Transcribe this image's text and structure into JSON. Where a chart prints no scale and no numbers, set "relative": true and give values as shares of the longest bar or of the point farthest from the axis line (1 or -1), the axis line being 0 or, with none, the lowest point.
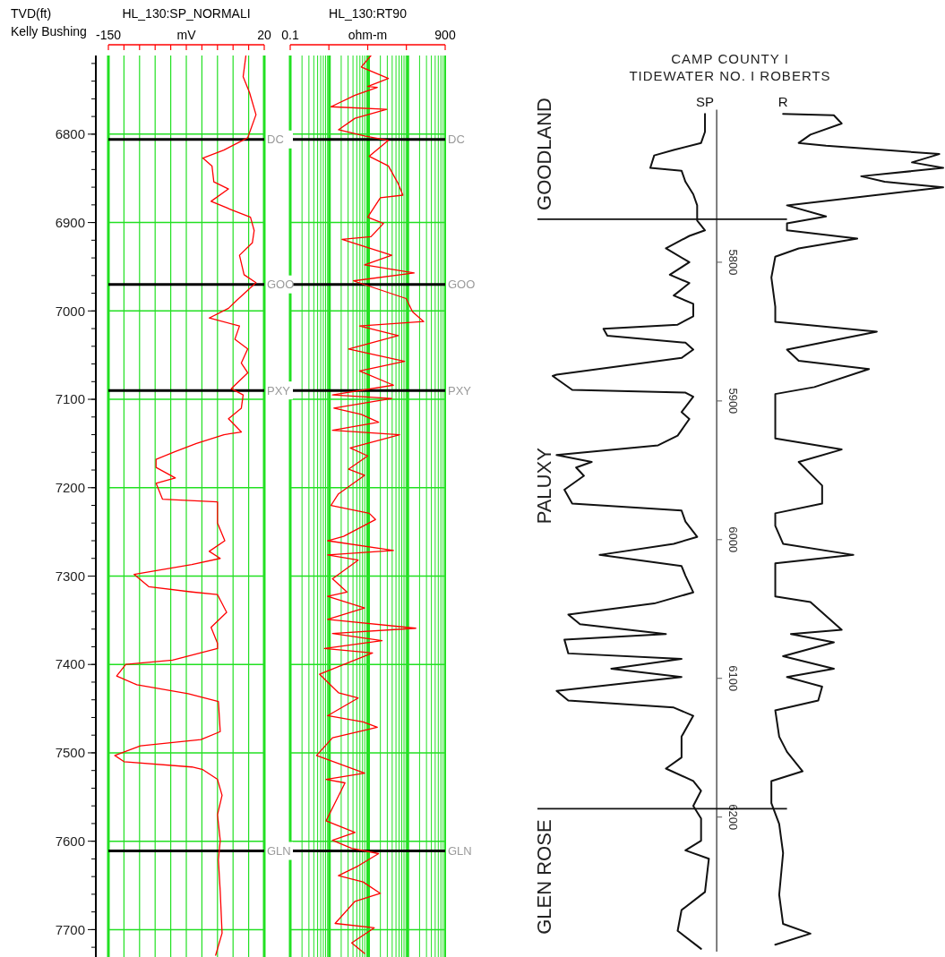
{
  "chart_data": [
    {
      "type": "line",
      "title": "HL_130:SP_NORMALI",
      "xlabel": "mV",
      "ylabel": "TVD(ft)\nKelly Bushing",
      "xlim": [
        -150,
        20
      ],
      "xticks": [
        -150,
        {
          "value": -133,
          "label": null
        },
        {
          "value": -116,
          "label": null
        },
        {
          "value": -99,
          "label": null
        },
        {
          "value": -82,
          "label": null
        },
        {
          "value": -65,
          "label": null
        },
        {
          "value": -48,
          "label": null
        },
        {
          "value": -31,
          "label": null
        },
        {
          "value": -14,
          "label": null
        },
        {
          "value": 3,
          "label": null
        },
        20
      ],
      "ylim": [
        7731,
        6711
      ],
      "yticks": [
        6800,
        6900,
        7000,
        7100,
        7200,
        7300,
        7400,
        7500,
        7600,
        7700
      ],
      "grid": true,
      "series": [
        {
          "color": "#ff0000",
          "x": [
            0,
            -3,
            4,
            11,
            2,
            -24,
            -47,
            -37,
            -35,
            -19,
            -38,
            -17,
            5,
            9,
            7,
            -7,
            -2,
            11,
            -10,
            -19,
            -40,
            -7,
            -12,
            2,
            -5,
            2,
            -16,
            -3,
            -5,
            -19,
            -5,
            -24,
            -54,
            -77,
            -98,
            -98,
            -77,
            -98,
            -91,
            -31,
            -31,
            -23,
            -40,
            -28,
            -59,
            -122,
            -106,
            -59,
            -31,
            -21,
            -38,
            -31,
            -31,
            -80,
            -131,
            -141,
            -119,
            -63,
            -30,
            -28,
            -49,
            -115,
            -143,
            -133,
            -59,
            -47,
            -31,
            -26,
            -31,
            -28,
            -30,
            -28,
            -26,
            -33
          ],
          "values": [
            6711,
            6735,
            6753,
            6778,
            6804,
            6818,
            6827,
            6836,
            6854,
            6862,
            6876,
            6885,
            6894,
            6909,
            6923,
            6937,
            6959,
            6968,
            6988,
            6997,
            7008,
            7017,
            7032,
            7043,
            7059,
            7070,
            7088,
            7095,
            7110,
            7122,
            7137,
            7140,
            7150,
            7159,
            7168,
            7177,
            7189,
            7195,
            7213,
            7216,
            7240,
            7260,
            7272,
            7280,
            7287,
            7298,
            7312,
            7318,
            7321,
            7341,
            7358,
            7376,
            7382,
            7395,
            7400,
            7413,
            7423,
            7433,
            7442,
            7476,
            7485,
            7492,
            7503,
            7510,
            7516,
            7519,
            7530,
            7548,
            7570,
            7599,
            7621,
            7657,
            7704,
            7729
          ]
        }
      ],
      "ref_lines": [
        {
          "axis": "y",
          "value": 6806,
          "label": "DC",
          "color": "#000000"
        },
        {
          "axis": "y",
          "value": 6970,
          "label": "GOO",
          "color": "#000000"
        },
        {
          "axis": "y",
          "value": 7090,
          "label": "PXY",
          "color": "#000000"
        },
        {
          "axis": "y",
          "value": 7611,
          "label": "GLN",
          "color": "#000000"
        }
      ]
    },
    {
      "type": "line",
      "title": "HL_130:RT90",
      "xlabel": "ohm-m",
      "log": "x",
      "xlim": [
        0.1,
        900
      ],
      "xticks": [
        0.1,
        {
          "value": 0.97,
          "label": null
        },
        {
          "value": 9.5,
          "label": null
        },
        {
          "value": 92,
          "label": null
        },
        900
      ],
      "ylim": [
        7731,
        6711
      ],
      "yticks": [
        6800,
        6900,
        7000,
        7100,
        7200,
        7300,
        7400,
        7500,
        7600,
        7700
      ],
      "tick_labels": "x",
      "grid": true,
      "series": [
        {
          "color": "#ff0000",
          "x": [
            11.5,
            6.5,
            32,
            9.5,
            16.7,
            4.5,
            1.1,
            29,
            4.5,
            1.7,
            7.9,
            32,
            10.4,
            32,
            57,
            75,
            20,
            9.5,
            24,
            11.5,
            2.1,
            39,
            7.9,
            145,
            4.1,
            91,
            132,
            255,
            5.9,
            57,
            3.1,
            83,
            5.9,
            43,
            1.2,
            39,
            1.3,
            6.5,
            18,
            1.2,
            62,
            3.4,
            9.5,
            3.1,
            7.9,
            1.7,
            1.1,
            10.4,
            15,
            2.3,
            0.9,
            43,
            0.9,
            5.4,
            1.2,
            2.8,
            0.9,
            7.9,
            0.9,
            160,
            1.2,
            22,
            0.75,
            12.6,
            0.56,
            1.7,
            5.4,
            0.9,
            7.2,
            16.7,
            1.2,
            0.47,
            7.9,
            0.82,
            2.5,
            0.82,
            4.5,
            1.2,
            3.7,
            18,
            5.4,
            1.7,
            7.2,
            20,
            4.5,
            1.4,
            13.9,
            3.7,
            7.9
          ],
          "values": [
            6711,
            6724,
            6737,
            6746,
            6747,
            6756,
            6769,
            6772,
            6782,
            6795,
            6802,
            6807,
            6825,
            6836,
            6856,
            6869,
            6872,
            6894,
            6901,
            6916,
            6919,
            6937,
            6948,
            6957,
            6966,
            6986,
            7001,
            7012,
            7017,
            7028,
            7043,
            7057,
            7068,
            7084,
            7095,
            7099,
            7110,
            7117,
            7126,
            7135,
            7140,
            7155,
            7164,
            7179,
            7186,
            7207,
            7220,
            7229,
            7236,
            7255,
            7260,
            7271,
            7276,
            7282,
            7303,
            7318,
            7323,
            7336,
            7349,
            7359,
            7365,
            7373,
            7382,
            7387,
            7411,
            7432,
            7438,
            7458,
            7465,
            7471,
            7483,
            7503,
            7523,
            7530,
            7534,
            7577,
            7590,
            7599,
            7608,
            7614,
            7628,
            7639,
            7646,
            7659,
            7668,
            7693,
            7698,
            7715,
            7727
          ]
        }
      ],
      "ref_lines": [
        {
          "axis": "y",
          "value": 6806,
          "label": "DC",
          "color": "#000000"
        },
        {
          "axis": "y",
          "value": 6970,
          "label": "GOO",
          "color": "#000000"
        },
        {
          "axis": "y",
          "value": 7090,
          "label": "PXY",
          "color": "#000000"
        },
        {
          "axis": "y",
          "value": 7611,
          "label": "GLN",
          "color": "#000000"
        }
      ]
    },
    {
      "type": "line",
      "title": "CAMP COUNTY I",
      "subtitle": "TIDEWATER NO. I ROBERTS",
      "relative": true,
      "orientation": "horizontal",
      "ylim": [
        6297,
        5690
      ],
      "yticks": [
        5800,
        5900,
        6000,
        6100,
        6200
      ],
      "tick_labels": "y",
      "series": [
        {
          "name": "SP",
          "color": "#111111",
          "values": [
            0.39,
            0.39,
            0.38,
            0.31,
            0.26,
            0.25,
            0.33,
            0.34,
            0.36,
            0.37,
            0.37,
            0.39,
            0.35,
            0.29,
            0.35,
            0.3,
            0.35,
            0.31,
            0.36,
            0.36,
            0.32,
            0.13,
            0.14,
            0.34,
            0.36,
            0.33,
            0.01,
            0.0,
            0.05,
            0.34,
            0.36,
            0.33,
            0.35,
            0.32,
            0.27,
            0.01,
            0.1,
            0.06,
            0.08,
            0.03,
            0.05,
            0.33,
            0.34,
            0.37,
            0.31,
            0.12,
            0.33,
            0.34,
            0.36,
            0.26,
            0.04,
            0.07,
            0.29,
            0.03,
            0.04,
            0.33,
            0.15,
            0.33,
            0.01,
            0.04,
            0.31,
            0.36,
            0.33,
            0.33,
            0.29,
            0.36,
            0.38,
            0.36,
            0.38,
            0.38,
            0.34,
            0.4,
            0.39,
            0.33,
            0.32,
            0.38
          ],
          "x": [
            5693,
            5706,
            5714,
            5719,
            5723,
            5732,
            5734,
            5742,
            5751,
            5759,
            5770,
            5777,
            5781,
            5790,
            5800,
            5809,
            5815,
            5824,
            5830,
            5839,
            5845,
            5848,
            5853,
            5858,
            5863,
            5869,
            5881,
            5882,
            5892,
            5894,
            5897,
            5908,
            5913,
            5925,
            5932,
            5939,
            5944,
            5948,
            5954,
            5964,
            5974,
            5979,
            5987,
            5998,
            6003,
            6011,
            6019,
            6026,
            6038,
            6046,
            6054,
            6061,
            6068,
            6072,
            6082,
            6086,
            6093,
            6099,
            6109,
            6116,
            6121,
            6127,
            6142,
            6157,
            6165,
            6174,
            6181,
            6192,
            6201,
            6217,
            6224,
            6230,
            6254,
            6267,
            6282,
            6295
          ]
        },
        {
          "name": "R",
          "color": "#111111",
          "values": [
            0.59,
            0.72,
            0.74,
            0.66,
            0.63,
            0.7,
            0.99,
            0.92,
            1.0,
            0.79,
            0.85,
            1.0,
            0.6,
            0.7,
            0.6,
            0.6,
            0.78,
            0.63,
            0.57,
            0.56,
            0.57,
            0.57,
            0.83,
            0.6,
            0.63,
            0.81,
            0.67,
            0.57,
            0.57,
            0.74,
            0.63,
            0.69,
            0.69,
            0.57,
            0.57,
            0.59,
            0.77,
            0.57,
            0.57,
            0.66,
            0.74,
            0.61,
            0.72,
            0.59,
            0.72,
            0.6,
            0.69,
            0.68,
            0.57,
            0.58,
            0.6,
            0.64,
            0.56,
            0.56,
            0.58,
            0.59,
            0.58,
            0.59,
            0.66,
            0.57
          ],
          "x": [
            5693,
            5694,
            5700,
            5708,
            5714,
            5716,
            5722,
            5728,
            5732,
            5738,
            5742,
            5746,
            5759,
            5767,
            5772,
            5777,
            5783,
            5790,
            5796,
            5811,
            5832,
            5843,
            5850,
            5863,
            5871,
            5877,
            5890,
            5895,
            5927,
            5935,
            5944,
            5961,
            5974,
            5981,
            5990,
            6003,
            6011,
            6017,
            6041,
            6045,
            6065,
            6068,
            6074,
            6084,
            6093,
            6099,
            6106,
            6116,
            6123,
            6142,
            6153,
            6167,
            6174,
            6190,
            6205,
            6226,
            6256,
            6277,
            6284,
            6292
          ]
        }
      ],
      "ref_lines": [
        {
          "axis": "y",
          "value": 5769,
          "label": "GOODLAND",
          "color": "#111111"
        },
        {
          "axis": "y",
          "value": 6194,
          "label": "GLEN ROSE",
          "color": "#111111"
        }
      ],
      "annotations": [
        "PALUXY"
      ]
    }
  ]
}
